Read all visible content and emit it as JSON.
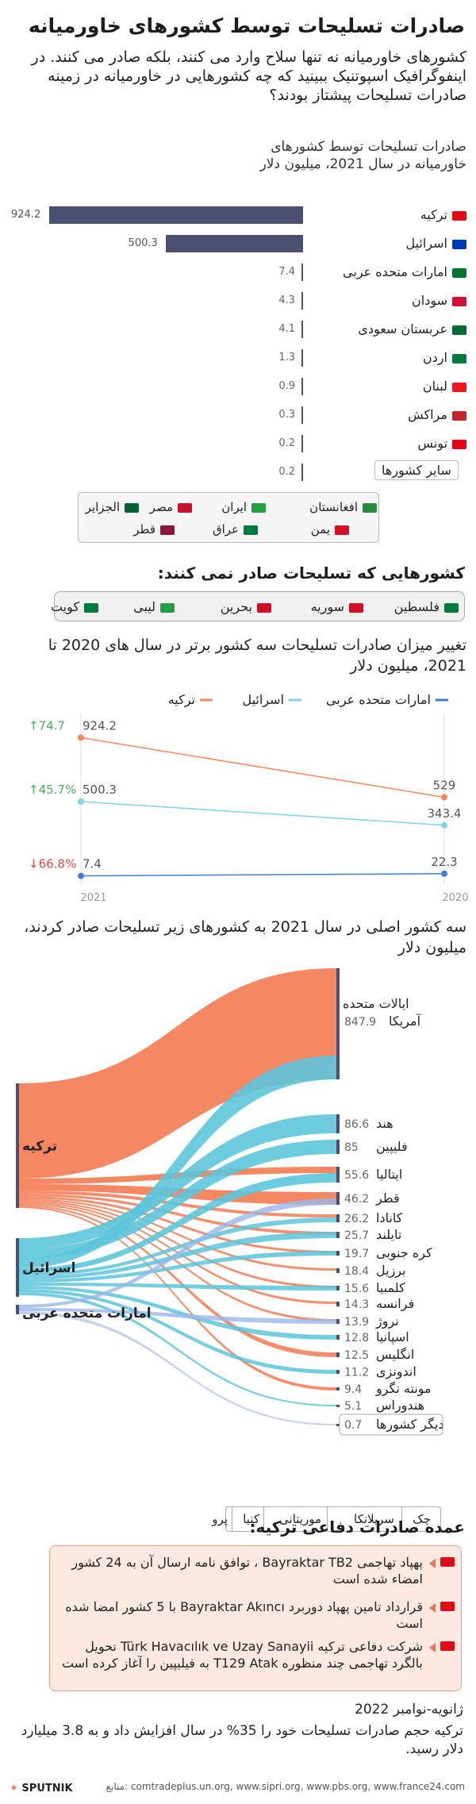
{
  "header": {
    "title": "صادرات تسلیحات توسط کشورهای خاورمیانه",
    "intro": "کشورهای خاورمیانه  نه تنها سلاح وارد می کنند، بلکه صادر می کنند. در اینفوگرافیک اسپوتنیک ببینید که چه کشورهایی در خاورمیانه در زمینه صادرات تسلیحات پیشتاز بودند؟"
  },
  "colors": {
    "bar": "#4c5070",
    "turkey": "#f08a5d",
    "israel": "#7fd4e6",
    "uae": "#3d7fd9",
    "increase": "#4cae5a",
    "decrease": "#e04848",
    "sankey_turkey": "#f47a52",
    "sankey_israel": "#5cc5d9",
    "sankey_node": "#4c5070"
  },
  "chart_data": [
    {
      "type": "bar",
      "title": "صادرات تسلیحات توسط کشورهای خاورمیانه در سال 2021، میلیون دلار",
      "categories": [
        "ترکیه",
        "اسرائیل",
        "امارات متحده عربی",
        "سودان",
        "عربستان سعودی",
        "اردن",
        "لبنان",
        "مراکش",
        "تونس",
        "سایر کشورها"
      ],
      "flags": [
        "turkey-flag-icon",
        "israel-flag-icon",
        "uae-flag-icon",
        "sudan-flag-icon",
        "saudi-flag-icon",
        "jordan-flag-icon",
        "lebanon-flag-icon",
        "morocco-flag-icon",
        "tunisia-flag-icon",
        ""
      ],
      "values": [
        924.2,
        500.3,
        7.4,
        4.3,
        4.1,
        1.3,
        0.9,
        0.3,
        0.2,
        0.2
      ],
      "value_labels": [
        "924.2",
        "500.3",
        "7.4",
        "4.3",
        "4.1",
        "1.3",
        "0.9",
        "0.3",
        "0.2",
        "0.2"
      ],
      "other_countries": [
        "افغانستان",
        "ایران",
        "مصر",
        "الجزایر",
        "یمن",
        "عراق",
        "قطر"
      ]
    },
    {
      "type": "line",
      "title": "تغییر میزان صادرات تسلیحات سه کشور برتر در سال های 2020 تا 2021، میلیون دلار",
      "x": [
        "2021",
        "2020"
      ],
      "series": [
        {
          "name": "ترکیه",
          "values": [
            924.2,
            529
          ],
          "labels": [
            "924.2",
            "529"
          ],
          "change": "↑74.7"
        },
        {
          "name": "اسرائیل",
          "values": [
            500.3,
            343.4
          ],
          "labels": [
            "500.3",
            "343.4"
          ],
          "change": "↑45.7%"
        },
        {
          "name": "امارات متحده عربی",
          "values": [
            7.4,
            22.3
          ],
          "labels": [
            "7.4",
            "22.3"
          ],
          "change": "↓66.8%"
        }
      ]
    },
    {
      "type": "sankey",
      "title": "سه کشور اصلی در سال 2021 به کشورهای زیر تسلیحات صادر کردند، میلیون دلار",
      "sources": [
        "ترکیه",
        "اسرائیل",
        "امارات متحده عربی"
      ],
      "targets": [
        {
          "name": "ایالات متحده آمریکا",
          "value": "847.9"
        },
        {
          "name": "هند",
          "value": "86.6"
        },
        {
          "name": "فلیپین",
          "value": "85"
        },
        {
          "name": "ایتالیا",
          "value": "55.6"
        },
        {
          "name": "قطر",
          "value": "46.2"
        },
        {
          "name": "کانادا",
          "value": "26.2"
        },
        {
          "name": "تایلند",
          "value": "25.7"
        },
        {
          "name": "کره جنوبی",
          "value": "19.7"
        },
        {
          "name": "برزیل",
          "value": "18.4"
        },
        {
          "name": "کلمبیا",
          "value": "15.6"
        },
        {
          "name": "فرانسه",
          "value": "14.3"
        },
        {
          "name": "نروژ",
          "value": "13.9"
        },
        {
          "name": "اسپانیا",
          "value": "12.8"
        },
        {
          "name": "انگلیس",
          "value": "12.5"
        },
        {
          "name": "اندونزی",
          "value": "11.2"
        },
        {
          "name": "مونته نگرو",
          "value": "9.4"
        },
        {
          "name": "هندوراس",
          "value": "5.1"
        },
        {
          "name": "دیگر کشورها",
          "value": "0.7"
        }
      ],
      "others": [
        "چک",
        "سریلانکا",
        "موریتانی",
        "کنیا",
        "پرو"
      ]
    }
  ],
  "no_export": {
    "title": "کشورهایی که تسلیحات صادر نمی کنند:",
    "countries": [
      "فلسطین",
      "سوریه",
      "بحرین",
      "لیبی",
      "کویت"
    ]
  },
  "facts": {
    "title": "عمده صادرات دفاعی ترکیه:",
    "items": [
      "پهپاد تهاجمی Bayraktar TB2 ، توافق نامه ارسال آن به 24 کشور امضاء شده است",
      "قرارداد تامین پهپاد دوربرد Bayraktar Akıncı با 5 کشور امضا شده است",
      "شرکت دفاعی ترکیه Türk Havacılık ve Uzay Sanayii تحویل بالگرد تهاجمی چند منظوره T129 Atak به فیلیپین را آغاز کرده است"
    ]
  },
  "footer": {
    "date": "ژانویه-نوامبر 2022",
    "summary": "ترکیه حجم صادرات تسلیحات خود را 35% در سال افزایش داد و به 3.8 میلیارد دلار رسید.",
    "brand": "SPUTNIK",
    "sources": "منابع: comtradeplus.un.org, www.sipri.org, www.pbs.org, www.france24.com"
  }
}
